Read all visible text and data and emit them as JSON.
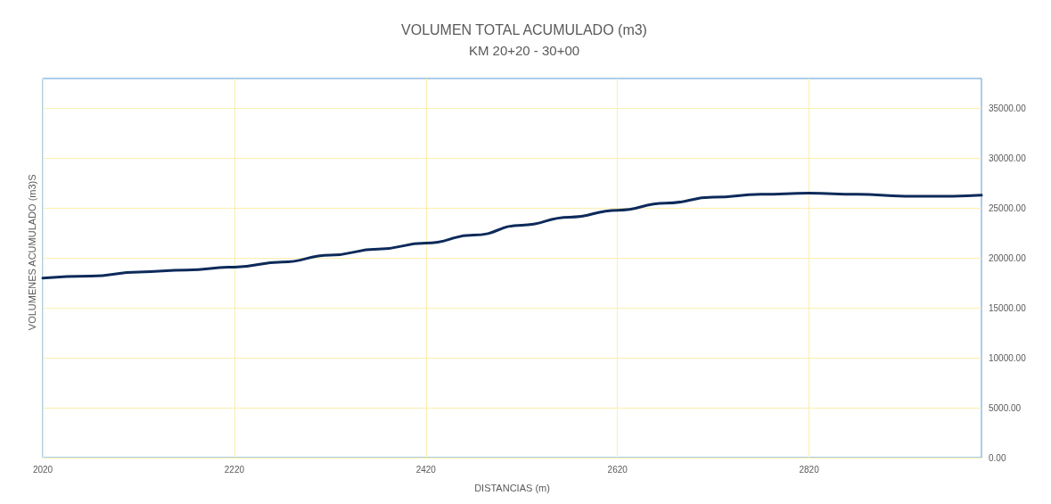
{
  "chart_data": {
    "type": "line",
    "title": "VOLUMEN TOTAL ACUMULADO (m3)",
    "subtitle": "KM 20+20 - 30+00",
    "xlabel": "DISTANCIAS (m)",
    "ylabel": "VOLUMENES ACUMULADO (m3)S",
    "x": [
      2020,
      2070,
      2120,
      2170,
      2220,
      2270,
      2320,
      2370,
      2420,
      2470,
      2520,
      2570,
      2620,
      2670,
      2720,
      2770,
      2820,
      2870,
      2920,
      2970,
      3000
    ],
    "series": [
      {
        "color": "#0d2a5a",
        "values": [
          18000,
          18200,
          18600,
          18800,
          19100,
          19600,
          20300,
          20900,
          21500,
          22300,
          23300,
          24100,
          24800,
          25500,
          26100,
          26400,
          26500,
          26400,
          26200,
          26200,
          26300
        ]
      }
    ],
    "xlim": [
      2020,
      3000
    ],
    "xticks": [
      2020,
      2220,
      2420,
      2620,
      2820
    ],
    "ylim": [
      0,
      38000
    ],
    "yticks": [
      {
        "value": 0,
        "label": "0.00"
      },
      {
        "value": 5000,
        "label": "5000.00"
      },
      {
        "value": 10000,
        "label": "10000.00"
      },
      {
        "value": 15000,
        "label": "15000.00"
      },
      {
        "value": 20000,
        "label": "20000.00"
      },
      {
        "value": 25000,
        "label": "25000.00"
      },
      {
        "value": 30000,
        "label": "30000.00"
      },
      {
        "value": 35000,
        "label": "35000.00"
      }
    ],
    "grid": true,
    "marker": "none",
    "line_style": "solid"
  }
}
